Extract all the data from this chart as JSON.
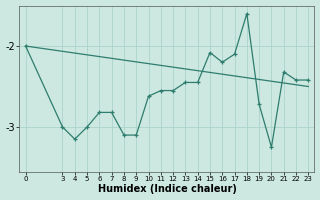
{
  "xlabel": "Humidex (Indice chaleur)",
  "bg_color": "#cce8e0",
  "line_color": "#2e7d6e",
  "grid_color": "#aad4cc",
  "data_x": [
    0,
    3,
    4,
    5,
    6,
    7,
    8,
    9,
    10,
    11,
    12,
    13,
    14,
    15,
    16,
    17,
    18,
    19,
    20,
    21,
    22,
    23
  ],
  "data_y": [
    -2.0,
    -3.0,
    -3.15,
    -3.0,
    -2.82,
    -2.82,
    -3.1,
    -3.1,
    -2.62,
    -2.55,
    -2.55,
    -2.45,
    -2.45,
    -2.08,
    -2.2,
    -2.1,
    -1.6,
    -2.72,
    -3.25,
    -2.32,
    -2.42,
    -2.42
  ],
  "trend_x": [
    0,
    23
  ],
  "trend_y": [
    -2.0,
    -2.5
  ],
  "ylim": [
    -3.55,
    -1.5
  ],
  "xlim": [
    -0.5,
    23.5
  ],
  "yticks": [
    -3,
    -2
  ],
  "xticks": [
    0,
    3,
    4,
    5,
    6,
    7,
    8,
    9,
    10,
    11,
    12,
    13,
    14,
    15,
    16,
    17,
    18,
    19,
    20,
    21,
    22,
    23
  ]
}
